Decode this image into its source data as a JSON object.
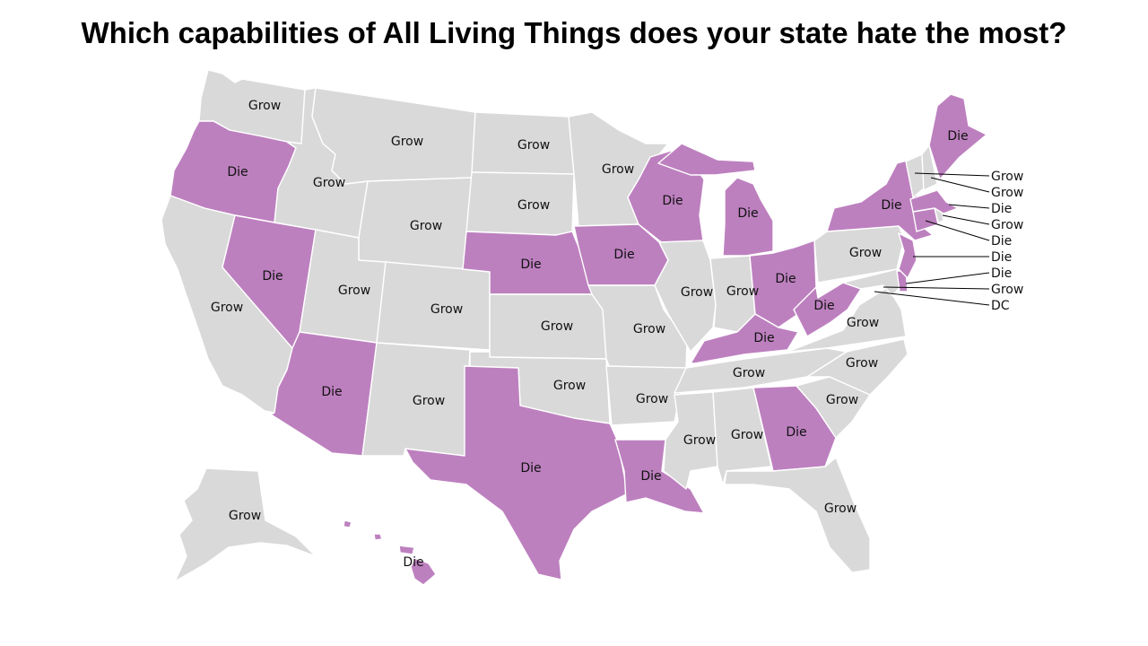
{
  "title": "Which capabilities of All Living Things does your state hate the most?",
  "colors": {
    "Grow": "#d9d9d9",
    "Die": "#bd80bf",
    "border": "#ffffff",
    "text": "#111111"
  },
  "states": {
    "WA": "Grow",
    "OR": "Die",
    "CA": "Grow",
    "NV": "Die",
    "ID": "Grow",
    "MT": "Grow",
    "WY": "Grow",
    "UT": "Grow",
    "AZ": "Die",
    "CO": "Grow",
    "NM": "Grow",
    "ND": "Grow",
    "SD": "Grow",
    "NE": "Die",
    "KS": "Grow",
    "OK": "Grow",
    "TX": "Die",
    "MN": "Grow",
    "IA": "Die",
    "MO": "Grow",
    "AR": "Grow",
    "LA": "Die",
    "WI": "Die",
    "IL": "Grow",
    "MI": "Die",
    "IN": "Grow",
    "OH": "Die",
    "KY": "Die",
    "TN": "Grow",
    "MS": "Grow",
    "AL": "Grow",
    "GA": "Die",
    "FL": "Grow",
    "SC": "Grow",
    "NC": "Grow",
    "VA": "Grow",
    "WV": "Die",
    "PA": "Grow",
    "NY": "Die",
    "ME": "Die",
    "NJ": "Die",
    "AK": "Grow",
    "HI": "Die"
  },
  "northeast_callouts": [
    {
      "state": "VT",
      "value": "Grow"
    },
    {
      "state": "NH",
      "value": "Grow"
    },
    {
      "state": "MA",
      "value": "Die"
    },
    {
      "state": "RI",
      "value": "Grow"
    },
    {
      "state": "CT",
      "value": "Die"
    },
    {
      "state": "NJ",
      "value": "Die"
    },
    {
      "state": "DE",
      "value": "Die"
    },
    {
      "state": "MD",
      "value": "Grow"
    },
    {
      "state": "DC",
      "value": "DC"
    }
  ]
}
